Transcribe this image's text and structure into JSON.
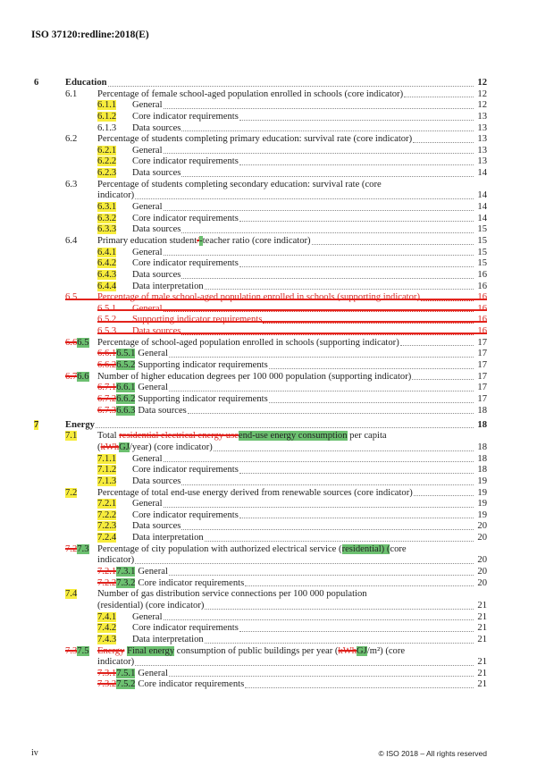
{
  "header": "ISO 37120:redline:2018(E)",
  "footer": {
    "page": "iv",
    "copyright": "© ISO 2018 – All rights reserved"
  },
  "colors": {
    "inserted_highlight": "#6cc070",
    "changed_highlight": "#f7ec3c",
    "deleted": "#d8241e"
  },
  "rows": [
    {
      "level": 1,
      "num": [
        {
          "t": "6"
        }
      ],
      "title": [
        {
          "t": "Education"
        }
      ],
      "page": "12"
    },
    {
      "level": 2,
      "num": [
        {
          "t": "6.1"
        }
      ],
      "title": [
        {
          "t": "Percentage of female school-aged population enrolled in schools (core indicator)"
        }
      ],
      "page": "12"
    },
    {
      "level": 3,
      "num": [
        {
          "t": "6.1.1",
          "s": "y"
        }
      ],
      "title": [
        {
          "t": "General"
        }
      ],
      "page": "12"
    },
    {
      "level": 3,
      "num": [
        {
          "t": "6.1.2",
          "s": "y"
        }
      ],
      "title": [
        {
          "t": "Core indicator requirements"
        }
      ],
      "page": "13"
    },
    {
      "level": 3,
      "num": [
        {
          "t": "6.1.3"
        }
      ],
      "title": [
        {
          "t": "Data sources"
        }
      ],
      "page": "13"
    },
    {
      "level": 2,
      "num": [
        {
          "t": "6.2"
        }
      ],
      "title": [
        {
          "t": "Percentage of students completing primary education: survival rate (core indicator)"
        }
      ],
      "page": "13"
    },
    {
      "level": 3,
      "num": [
        {
          "t": "6.2.1",
          "s": "y"
        }
      ],
      "title": [
        {
          "t": "General"
        }
      ],
      "page": "13"
    },
    {
      "level": 3,
      "num": [
        {
          "t": "6.2.2",
          "s": "y"
        }
      ],
      "title": [
        {
          "t": "Core indicator requirements"
        }
      ],
      "page": "13"
    },
    {
      "level": 3,
      "num": [
        {
          "t": "6.2.3",
          "s": "y"
        }
      ],
      "title": [
        {
          "t": "Data sources"
        }
      ],
      "page": "14"
    },
    {
      "level": 2,
      "num": [
        {
          "t": "6.3"
        }
      ],
      "title": [
        {
          "t": "Percentage of students completing secondary education: survival rate (core"
        }
      ]
    },
    {
      "level": 2,
      "cont": true,
      "title": [
        {
          "t": "indicator)"
        }
      ],
      "page": "14"
    },
    {
      "level": 3,
      "num": [
        {
          "t": "6.3.1",
          "s": "y"
        }
      ],
      "title": [
        {
          "t": "General"
        }
      ],
      "page": "14"
    },
    {
      "level": 3,
      "num": [
        {
          "t": "6.3.2",
          "s": "y"
        }
      ],
      "title": [
        {
          "t": "Core indicator requirements"
        }
      ],
      "page": "14"
    },
    {
      "level": 3,
      "num": [
        {
          "t": "6.3.3",
          "s": "y"
        }
      ],
      "title": [
        {
          "t": "Data sources"
        }
      ],
      "page": "15"
    },
    {
      "level": 2,
      "num": [
        {
          "t": "6.4"
        }
      ],
      "title": [
        {
          "t": "Primary education student"
        },
        {
          "t": "/",
          "s": "d"
        },
        {
          "t": "-",
          "s": "g"
        },
        {
          "t": "teacher ratio (core indicator)"
        }
      ],
      "page": "15"
    },
    {
      "level": 3,
      "num": [
        {
          "t": "6.4.1",
          "s": "y"
        }
      ],
      "title": [
        {
          "t": "General"
        }
      ],
      "page": "15"
    },
    {
      "level": 3,
      "num": [
        {
          "t": "6.4.2",
          "s": "y"
        }
      ],
      "title": [
        {
          "t": "Core indicator requirements"
        }
      ],
      "page": "15"
    },
    {
      "level": 3,
      "num": [
        {
          "t": "6.4.3",
          "s": "y"
        }
      ],
      "title": [
        {
          "t": "Data sources"
        }
      ],
      "page": "16"
    },
    {
      "level": 3,
      "num": [
        {
          "t": "6.4.4",
          "s": "y"
        }
      ],
      "title": [
        {
          "t": "Data interpretation"
        }
      ],
      "page": "16"
    },
    {
      "level": 2,
      "deleted": true,
      "num": [
        {
          "t": "6.5"
        }
      ],
      "title": [
        {
          "t": "Percentage of male school-aged population enrolled in schools (supporting indicator)"
        }
      ],
      "page": "16"
    },
    {
      "level": 3,
      "deleted": true,
      "num": [
        {
          "t": "6.5.1"
        }
      ],
      "title": [
        {
          "t": "General"
        }
      ],
      "page": "16"
    },
    {
      "level": 3,
      "deleted": true,
      "num": [
        {
          "t": "6.5.2"
        }
      ],
      "title": [
        {
          "t": "Supporting indicator requirements"
        }
      ],
      "page": "16"
    },
    {
      "level": 3,
      "deleted": true,
      "num": [
        {
          "t": "6.5.3"
        }
      ],
      "title": [
        {
          "t": "Data sources"
        }
      ],
      "page": "16"
    },
    {
      "level": 2,
      "num": [
        {
          "t": "6.6",
          "s": "d"
        },
        {
          "t": "6.5",
          "s": "g"
        }
      ],
      "title": [
        {
          "t": "Percentage of school-aged population enrolled in schools (supporting indicator)"
        }
      ],
      "page": "17"
    },
    {
      "level": 3,
      "inline": true,
      "num": [
        {
          "t": "6.6.1",
          "s": "d"
        },
        {
          "t": "6.5.1",
          "s": "g"
        }
      ],
      "title": [
        {
          "t": "General"
        }
      ],
      "page": "17"
    },
    {
      "level": 3,
      "inline": true,
      "num": [
        {
          "t": "6.6.2",
          "s": "d"
        },
        {
          "t": "6.5.2",
          "s": "g"
        }
      ],
      "title": [
        {
          "t": "Supporting indicator requirements"
        }
      ],
      "page": "17"
    },
    {
      "level": 2,
      "num": [
        {
          "t": "6.7",
          "s": "d"
        },
        {
          "t": "6.6",
          "s": "g"
        }
      ],
      "title": [
        {
          "t": "Number of higher education degrees per 100 000 population (supporting indicator)"
        }
      ],
      "page": "17"
    },
    {
      "level": 3,
      "inline": true,
      "num": [
        {
          "t": "6.7.1",
          "s": "d"
        },
        {
          "t": "6.6.1",
          "s": "g"
        }
      ],
      "title": [
        {
          "t": "General"
        }
      ],
      "page": "17"
    },
    {
      "level": 3,
      "inline": true,
      "num": [
        {
          "t": "6.7.2",
          "s": "d"
        },
        {
          "t": "6.6.2",
          "s": "g"
        }
      ],
      "title": [
        {
          "t": "Supporting indicator requirements"
        }
      ],
      "page": "17"
    },
    {
      "level": 3,
      "inline": true,
      "num": [
        {
          "t": "6.7.3",
          "s": "d"
        },
        {
          "t": "6.6.3",
          "s": "g"
        }
      ],
      "title": [
        {
          "t": "Data sources"
        }
      ],
      "page": "18"
    },
    {
      "level": 1,
      "gap": true,
      "num": [
        {
          "t": "7",
          "s": "y"
        }
      ],
      "title": [
        {
          "t": "Energy"
        }
      ],
      "page": "18"
    },
    {
      "level": 2,
      "num": [
        {
          "t": "7.1",
          "s": "y"
        }
      ],
      "title": [
        {
          "t": "Total "
        },
        {
          "t": "residential electrical energy use",
          "s": "d"
        },
        {
          "t": "end-use energy consumption",
          "s": "g"
        },
        {
          "t": " per capita"
        }
      ]
    },
    {
      "level": 2,
      "cont": true,
      "title": [
        {
          "t": "("
        },
        {
          "t": "kWh",
          "s": "d"
        },
        {
          "t": "GJ",
          "s": "g"
        },
        {
          "t": "/year) (core indicator)"
        }
      ],
      "page": "18"
    },
    {
      "level": 3,
      "num": [
        {
          "t": "7.1.1",
          "s": "y"
        }
      ],
      "title": [
        {
          "t": "General"
        }
      ],
      "page": "18"
    },
    {
      "level": 3,
      "num": [
        {
          "t": "7.1.2",
          "s": "y"
        }
      ],
      "title": [
        {
          "t": "Core indicator requirements"
        }
      ],
      "page": "18"
    },
    {
      "level": 3,
      "num": [
        {
          "t": "7.1.3",
          "s": "y"
        }
      ],
      "title": [
        {
          "t": "Data sources"
        }
      ],
      "page": "19"
    },
    {
      "level": 2,
      "num": [
        {
          "t": "7.2",
          "s": "y"
        }
      ],
      "title": [
        {
          "t": "Percentage of total end-use energy derived from renewable sources (core indicator)"
        }
      ],
      "page": "19"
    },
    {
      "level": 3,
      "num": [
        {
          "t": "7.2.1",
          "s": "y"
        }
      ],
      "title": [
        {
          "t": "General"
        }
      ],
      "page": "19"
    },
    {
      "level": 3,
      "num": [
        {
          "t": "7.2.2",
          "s": "y"
        }
      ],
      "title": [
        {
          "t": "Core indicator requirements"
        }
      ],
      "page": "19"
    },
    {
      "level": 3,
      "num": [
        {
          "t": "7.2.3",
          "s": "y"
        }
      ],
      "title": [
        {
          "t": "Data sources"
        }
      ],
      "page": "20"
    },
    {
      "level": 3,
      "num": [
        {
          "t": "7.2.4",
          "s": "y"
        }
      ],
      "title": [
        {
          "t": "Data interpretation"
        }
      ],
      "page": "20"
    },
    {
      "level": 2,
      "num": [
        {
          "t": "7.2",
          "s": "d"
        },
        {
          "t": "7.3",
          "s": "g"
        }
      ],
      "title": [
        {
          "t": "Percentage of city population with authorized electrical service ("
        },
        {
          "t": "residential) (",
          "s": "g"
        },
        {
          "t": "core"
        }
      ]
    },
    {
      "level": 2,
      "cont": true,
      "title": [
        {
          "t": "indicator)"
        }
      ],
      "page": "20"
    },
    {
      "level": 3,
      "inline": true,
      "num": [
        {
          "t": "7.2.1",
          "s": "d"
        },
        {
          "t": "7.3.1",
          "s": "g"
        }
      ],
      "title": [
        {
          "t": "General"
        }
      ],
      "page": "20"
    },
    {
      "level": 3,
      "inline": true,
      "num": [
        {
          "t": "7.2.2",
          "s": "d"
        },
        {
          "t": "7.3.2",
          "s": "g"
        }
      ],
      "title": [
        {
          "t": "Core indicator requirements"
        }
      ],
      "page": "20"
    },
    {
      "level": 2,
      "num": [
        {
          "t": "7.4",
          "s": "y"
        }
      ],
      "title": [
        {
          "t": "Number of gas distribution service connections per 100 000 population"
        }
      ]
    },
    {
      "level": 2,
      "cont": true,
      "title": [
        {
          "t": "(residential) (core indicator)"
        }
      ],
      "page": "21"
    },
    {
      "level": 3,
      "num": [
        {
          "t": "7.4.1",
          "s": "y"
        }
      ],
      "title": [
        {
          "t": "General"
        }
      ],
      "page": "21"
    },
    {
      "level": 3,
      "num": [
        {
          "t": "7.4.2",
          "s": "y"
        }
      ],
      "title": [
        {
          "t": "Core indicator requirements"
        }
      ],
      "page": "21"
    },
    {
      "level": 3,
      "num": [
        {
          "t": "7.4.3",
          "s": "y"
        }
      ],
      "title": [
        {
          "t": "Data interpretation"
        }
      ],
      "page": "21"
    },
    {
      "level": 2,
      "num": [
        {
          "t": "7.3",
          "s": "d"
        },
        {
          "t": "7.5",
          "s": "g"
        }
      ],
      "title": [
        {
          "t": "Energy",
          "s": "d"
        },
        {
          "t": " "
        },
        {
          "t": "Final energy",
          "s": "g"
        },
        {
          "t": " consumption of public buildings per year ("
        },
        {
          "t": "kWh",
          "s": "d"
        },
        {
          "t": "GJ",
          "s": "g"
        },
        {
          "t": "/m²) (core"
        }
      ]
    },
    {
      "level": 2,
      "cont": true,
      "title": [
        {
          "t": "indicator)"
        }
      ],
      "page": "21"
    },
    {
      "level": 3,
      "inline": true,
      "num": [
        {
          "t": "7.3.1",
          "s": "d"
        },
        {
          "t": "7.5.1",
          "s": "g"
        }
      ],
      "title": [
        {
          "t": "General"
        }
      ],
      "page": "21"
    },
    {
      "level": 3,
      "inline": true,
      "num": [
        {
          "t": "7.3.2",
          "s": "d"
        },
        {
          "t": "7.5.2",
          "s": "g"
        }
      ],
      "title": [
        {
          "t": "Core indicator requirements"
        }
      ],
      "page": "21"
    }
  ]
}
